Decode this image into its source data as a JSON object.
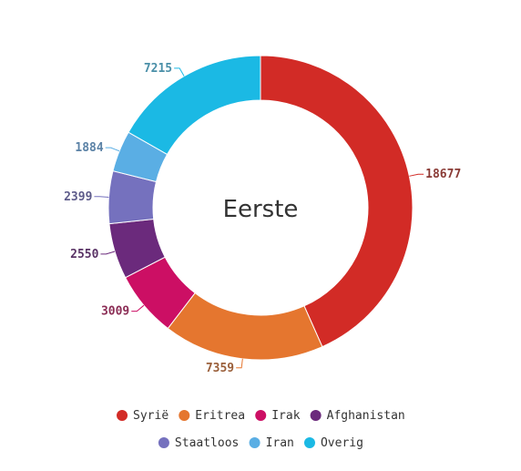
{
  "chart_data": {
    "type": "pie",
    "subtype": "donut",
    "center_label": "Eerste",
    "categories": [
      "Syrië",
      "Eritrea",
      "Irak",
      "Afghanistan",
      "Staatloos",
      "Iran",
      "Overig"
    ],
    "values": [
      18677,
      7359,
      3009,
      2550,
      2399,
      1884,
      7215
    ],
    "colors": [
      "#d22b26",
      "#e5762f",
      "#cc0f64",
      "#6b2a7c",
      "#7571be",
      "#5aaee4",
      "#1bb9e4"
    ],
    "label_colors": [
      "#8a3b36",
      "#9a5f3a",
      "#8b2d55",
      "#5a3366",
      "#5d5b8a",
      "#5b82a6",
      "#4a8fa8"
    ],
    "legend_position": "bottom"
  }
}
